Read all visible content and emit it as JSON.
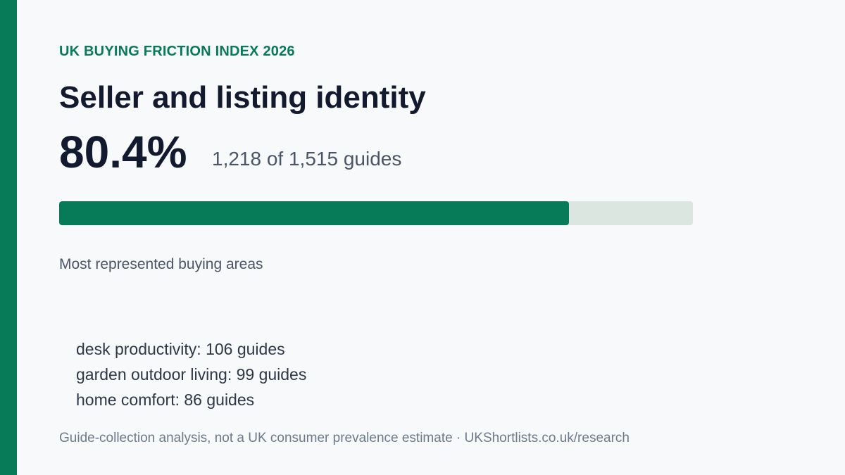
{
  "eyebrow": "UK BUYING FRICTION INDEX 2026",
  "title": "Seller and listing identity",
  "stat": {
    "percent_label": "80.4%",
    "count_label": "1,218 of 1,515 guides",
    "fraction": 0.804
  },
  "areas": {
    "heading": "Most represented buying areas",
    "items": [
      "desk productivity: 106 guides",
      "garden outdoor living: 99 guides",
      "home comfort: 86 guides"
    ]
  },
  "footer": "Guide-collection analysis, not a UK consumer prevalence estimate · UKShortlists.co.uk/research",
  "colors": {
    "accent": "#077a57",
    "track": "#dce6e1",
    "heading": "#111a2e"
  }
}
